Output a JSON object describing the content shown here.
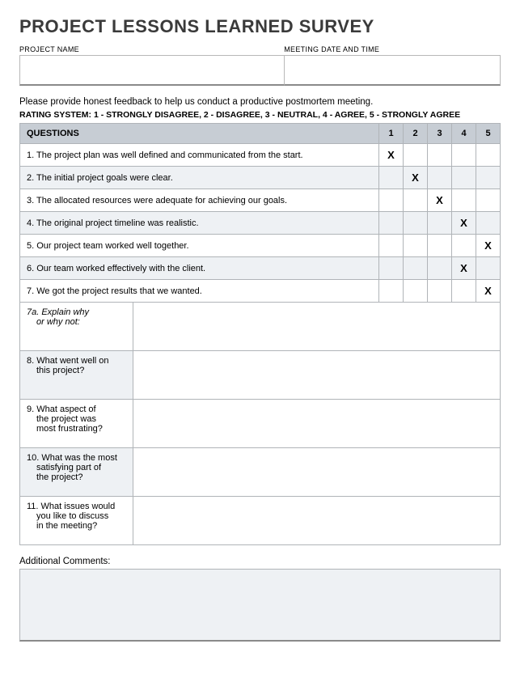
{
  "title": "PROJECT LESSONS LEARNED SURVEY",
  "meta": {
    "project_name_label": "PROJECT NAME",
    "project_name_value": "",
    "meeting_label": "MEETING DATE AND TIME",
    "meeting_value": ""
  },
  "instructions": "Please provide honest feedback to help us conduct a productive postmortem meeting.",
  "rating_system": "RATING SYSTEM: 1 - STRONGLY DISAGREE, 2 - DISAGREE, 3 - NEUTRAL, 4 - AGREE, 5 - STRONGLY AGREE",
  "questions_header": "QUESTIONS",
  "rating_columns": [
    "1",
    "2",
    "3",
    "4",
    "5"
  ],
  "mark_symbol": "X",
  "rating_questions": [
    {
      "text": "1. The project plan was well defined and communicated from the start.",
      "selected": 1
    },
    {
      "text": "2. The initial project goals were clear.",
      "selected": 2
    },
    {
      "text": "3. The allocated resources were adequate for achieving our goals.",
      "selected": 3
    },
    {
      "text": "4. The original project timeline was realistic.",
      "selected": 4
    },
    {
      "text": "5. Our project team worked well together.",
      "selected": 5
    },
    {
      "text": "6. Our team worked effectively with the client.",
      "selected": 4
    },
    {
      "text": "7. We got the project results that we wanted.",
      "selected": 5
    }
  ],
  "open_questions": [
    {
      "id": "7a",
      "line1": "7a. Explain why",
      "line2": "or why not:",
      "italic": true,
      "shade": "white"
    },
    {
      "id": "8",
      "line1": "8. What went well on",
      "line2": "this project?",
      "italic": false,
      "shade": "shade"
    },
    {
      "id": "9",
      "line1": "9. What aspect of",
      "line2": "the project was",
      "line3": "most frustrating?",
      "italic": false,
      "shade": "white"
    },
    {
      "id": "10",
      "line1": "10. What was the most",
      "line2": "satisfying part of",
      "line3": "the project?",
      "italic": false,
      "shade": "shade"
    },
    {
      "id": "11",
      "line1": "11. What issues would",
      "line2": "you like to discuss",
      "line3": "in the meeting?",
      "italic": false,
      "shade": "white"
    }
  ],
  "additional_comments_label": "Additional Comments:",
  "additional_comments_value": "",
  "colors": {
    "header_bg": "#c7cdd4",
    "row_shade": "#eef1f4",
    "border": "#b0b4b8",
    "title_color": "#3a3a3a"
  }
}
